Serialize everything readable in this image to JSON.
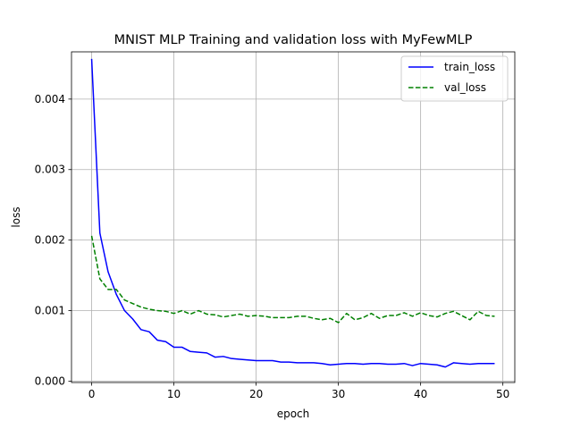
{
  "chart_data": {
    "type": "line",
    "title": "MNIST MLP Training and validation loss with MyFewMLP",
    "xlabel": "epoch",
    "ylabel": "loss",
    "xlim": [
      -2.45,
      51.45
    ],
    "ylim": [
      -2e-05,
      0.00467
    ],
    "x_ticks": [
      0,
      10,
      20,
      30,
      40,
      50
    ],
    "x_tick_labels": [
      "0",
      "10",
      "20",
      "30",
      "40",
      "50"
    ],
    "y_ticks": [
      0.0,
      0.001,
      0.002,
      0.003,
      0.004
    ],
    "y_tick_labels": [
      "0.000",
      "0.001",
      "0.002",
      "0.003",
      "0.004"
    ],
    "grid": true,
    "legend": "top-right",
    "series": [
      {
        "name": "train_loss",
        "color": "#0000ff",
        "style": "solid",
        "values": [
          0.00457,
          0.0021,
          0.00155,
          0.00123,
          0.001,
          0.00088,
          0.00073,
          0.0007,
          0.00058,
          0.00056,
          0.00048,
          0.00048,
          0.00042,
          0.00041,
          0.0004,
          0.00034,
          0.00035,
          0.00032,
          0.00031,
          0.0003,
          0.00029,
          0.00029,
          0.00029,
          0.00027,
          0.00027,
          0.00026,
          0.00026,
          0.00026,
          0.00025,
          0.00023,
          0.00024,
          0.00025,
          0.00025,
          0.00024,
          0.00025,
          0.00025,
          0.00024,
          0.00024,
          0.00025,
          0.00022,
          0.00025,
          0.00024,
          0.00023,
          0.0002,
          0.00026,
          0.00025,
          0.00024,
          0.00025,
          0.00025,
          0.00025
        ]
      },
      {
        "name": "val_loss",
        "color": "#008000",
        "style": "dashed",
        "values": [
          0.00206,
          0.00145,
          0.0013,
          0.0013,
          0.00115,
          0.0011,
          0.00105,
          0.00102,
          0.001,
          0.00099,
          0.00096,
          0.001,
          0.00095,
          0.001,
          0.00095,
          0.00094,
          0.00091,
          0.00093,
          0.00095,
          0.00092,
          0.00093,
          0.00092,
          0.0009,
          0.0009,
          0.0009,
          0.00092,
          0.00092,
          0.00089,
          0.00087,
          0.00089,
          0.00083,
          0.00096,
          0.00087,
          0.0009,
          0.00096,
          0.00089,
          0.00093,
          0.00093,
          0.00097,
          0.00092,
          0.00097,
          0.00093,
          0.00091,
          0.00096,
          0.00099,
          0.00093,
          0.00087,
          0.00099,
          0.00093,
          0.00092
        ]
      }
    ]
  }
}
